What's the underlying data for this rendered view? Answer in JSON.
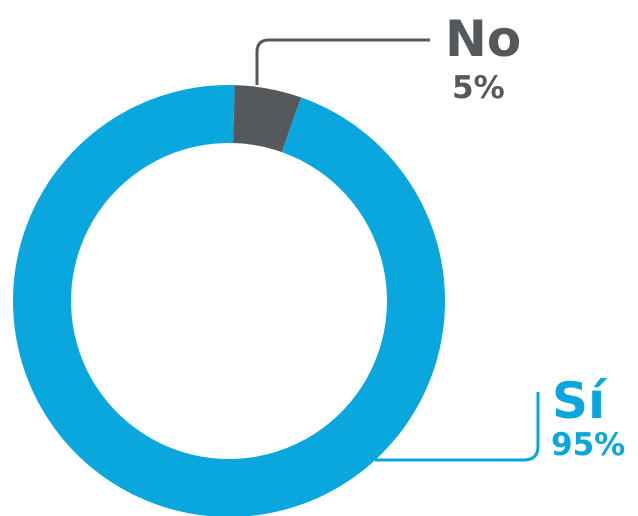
{
  "chart_data": {
    "type": "pie",
    "variant": "donut",
    "categories": [
      "No",
      "Sí"
    ],
    "values": [
      5,
      95
    ],
    "labels": [
      {
        "name": "No",
        "value_text": "5%"
      },
      {
        "name": "Sí",
        "value_text": "95%"
      }
    ],
    "colors": {
      "No": "#55595c",
      "Sí": "#0aa6de"
    },
    "title": "",
    "legend": "none"
  }
}
